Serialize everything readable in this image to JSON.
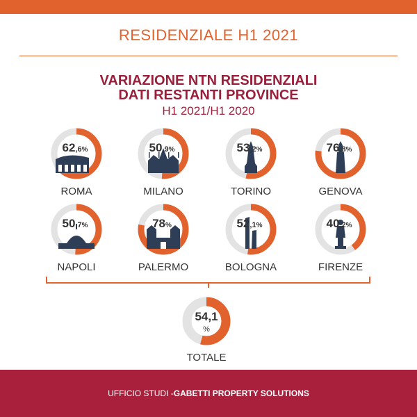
{
  "header": {
    "title": "RESIDENZIALE H1 2021"
  },
  "footer": {
    "prefix": "UFFICIO STUDI - ",
    "brand": "GABETTI PROPERTY SOLUTIONS"
  },
  "colors": {
    "accent": "#e2622e",
    "title": "#9a1f3a",
    "ring_bg": "#e3e3e3",
    "text": "#333333",
    "icon": "#2f3e57",
    "footer_bg": "#a8203c"
  },
  "chart_data": {
    "type": "donut",
    "title_lines": [
      "VARIAZIONE NTN RESIDENZIALI",
      "DATI RESTANTI PROVINCE"
    ],
    "subtitle": "H1 2021/H1 2020",
    "unit": "%",
    "items": [
      {
        "city": "ROMA",
        "int": "62",
        "dec": ",6",
        "value": 62.6,
        "icon": "colosseum-icon"
      },
      {
        "city": "MILANO",
        "int": "50",
        "dec": ",9",
        "value": 50.9,
        "icon": "milan-cathedral-icon"
      },
      {
        "city": "TORINO",
        "int": "53",
        "dec": ",2",
        "value": 53.2,
        "icon": "mole-antonelliana-icon"
      },
      {
        "city": "GENOVA",
        "int": "76",
        "dec": ",8",
        "value": 76.8,
        "icon": "lanterna-lighthouse-icon"
      },
      {
        "city": "NAPOLI",
        "int": "50",
        "dec": ",7",
        "value": 50.7,
        "icon": "plebiscito-dome-icon"
      },
      {
        "city": "PALERMO",
        "int": "78",
        "dec": "",
        "value": 78,
        "icon": "palermo-cathedral-icon"
      },
      {
        "city": "BOLOGNA",
        "int": "52",
        "dec": ",1",
        "value": 52.1,
        "icon": "two-towers-icon"
      },
      {
        "city": "FIRENZE",
        "int": "40",
        "dec": ",2",
        "value": 40.2,
        "icon": "david-statue-icon"
      }
    ],
    "total": {
      "label": "TOTALE",
      "value_text": "54,1",
      "value": 54.1
    }
  }
}
